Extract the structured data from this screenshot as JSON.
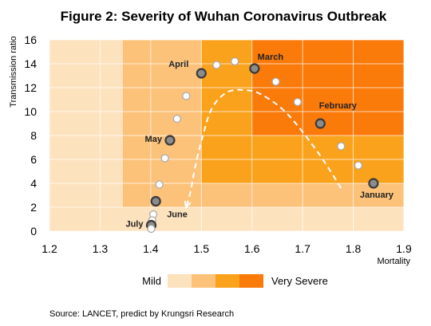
{
  "chart_data": {
    "type": "scatter",
    "title": "Figure 2: Severity of Wuhan Coronavirus Outbreak",
    "xlabel": "Mortality",
    "ylabel": "Transmission ratio",
    "xlim": [
      1.2,
      1.9
    ],
    "ylim": [
      0,
      16
    ],
    "x_ticks": [
      "1.2",
      "1.3",
      "1.4",
      "1.5",
      "1.6",
      "1.7",
      "1.8",
      "1.9"
    ],
    "y_ticks": [
      "0",
      "2",
      "4",
      "6",
      "8",
      "10",
      "12",
      "14",
      "16"
    ],
    "grid": true,
    "severity_zones": [
      {
        "x0": 1.2,
        "x1": 1.9,
        "y0": 0,
        "y1": 16,
        "color": "#FDE2BE"
      },
      {
        "x0": 1.345,
        "x1": 1.9,
        "y0": 2,
        "y1": 16,
        "color": "#FCC27A"
      },
      {
        "x0": 1.5,
        "x1": 1.9,
        "y0": 4,
        "y1": 16,
        "color": "#FBA21C"
      },
      {
        "x0": 1.6,
        "x1": 1.9,
        "y0": 8,
        "y1": 16,
        "color": "#FA7A0A"
      }
    ],
    "points": [
      {
        "x": 1.84,
        "y": 4.0,
        "label": "January",
        "highlight": true
      },
      {
        "x": 1.81,
        "y": 5.5
      },
      {
        "x": 1.776,
        "y": 7.1
      },
      {
        "x": 1.735,
        "y": 9.0,
        "label": "February",
        "highlight": true
      },
      {
        "x": 1.69,
        "y": 10.8
      },
      {
        "x": 1.647,
        "y": 12.5
      },
      {
        "x": 1.605,
        "y": 13.6,
        "label": "March",
        "highlight": true
      },
      {
        "x": 1.566,
        "y": 14.2
      },
      {
        "x": 1.53,
        "y": 13.9
      },
      {
        "x": 1.5,
        "y": 13.2,
        "label": "April",
        "highlight": true
      },
      {
        "x": 1.47,
        "y": 11.3
      },
      {
        "x": 1.452,
        "y": 9.4
      },
      {
        "x": 1.438,
        "y": 7.6,
        "label": "May",
        "highlight": true
      },
      {
        "x": 1.428,
        "y": 6.1
      },
      {
        "x": 1.417,
        "y": 3.9
      },
      {
        "x": 1.41,
        "y": 2.5,
        "label": "June",
        "highlight": true
      },
      {
        "x": 1.405,
        "y": 1.4
      },
      {
        "x": 1.403,
        "y": 0.9
      },
      {
        "x": 1.401,
        "y": 0.5,
        "label": "July",
        "highlight": true
      },
      {
        "x": 1.401,
        "y": 0.2
      }
    ],
    "trend_path": [
      [
        1.776,
        3.6
      ],
      [
        1.73,
        6.6
      ],
      [
        1.67,
        9.8
      ],
      [
        1.62,
        11.4
      ],
      [
        1.585,
        11.8
      ],
      [
        1.55,
        11.6
      ],
      [
        1.52,
        10.2
      ],
      [
        1.5,
        7.5
      ],
      [
        1.487,
        5.2
      ],
      [
        1.478,
        3.2
      ],
      [
        1.47,
        2.0
      ]
    ],
    "legend": {
      "low_label": "Mild",
      "high_label": "Very Severe",
      "colors": [
        "#FDE2BE",
        "#FCC27A",
        "#FBA21C",
        "#FA7A0A"
      ]
    }
  },
  "source": "Source: LANCET, predict by Krungsri Research"
}
